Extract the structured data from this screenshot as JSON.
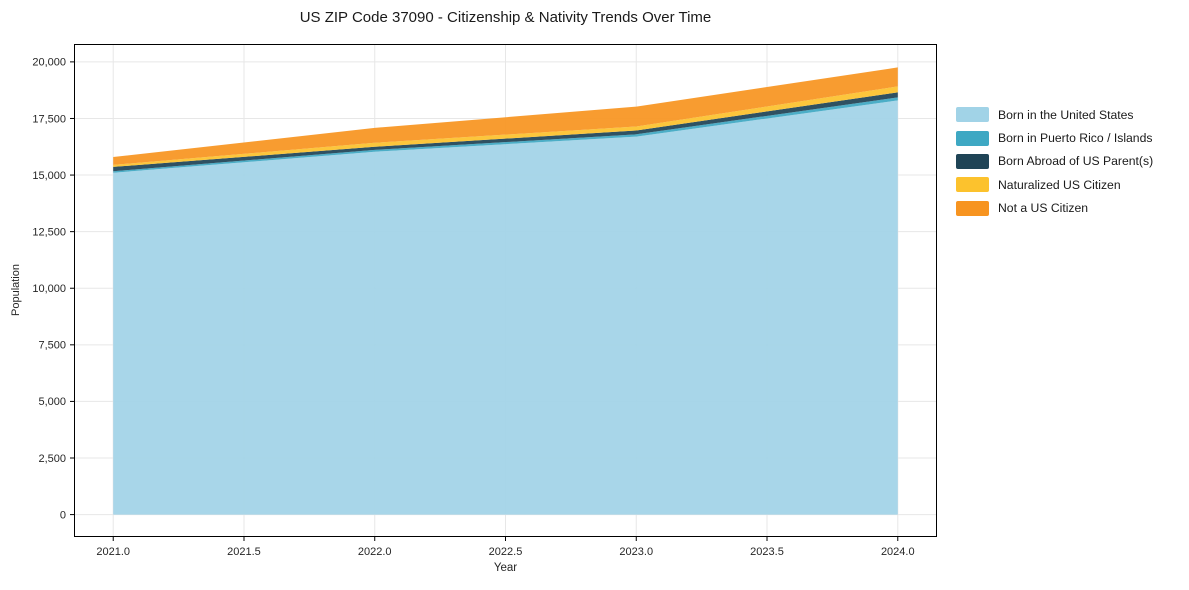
{
  "chart_data": {
    "type": "area",
    "stacked": true,
    "title": "US ZIP Code 37090 - Citizenship & Nativity Trends Over Time",
    "xlabel": "Year",
    "ylabel": "Population",
    "x": [
      2021,
      2022,
      2023,
      2024
    ],
    "series": [
      {
        "name": "Born in the United States",
        "color": "#a1d3e7",
        "values": [
          15100,
          16030,
          16700,
          18300
        ]
      },
      {
        "name": "Born in Puerto Rico / Islands",
        "color": "#3ea8c3",
        "values": [
          70,
          80,
          100,
          130
        ]
      },
      {
        "name": "Born Abroad of US Parent(s)",
        "color": "#1f4456",
        "values": [
          190,
          140,
          170,
          220
        ]
      },
      {
        "name": "Naturalized US Citizen",
        "color": "#fcc22d",
        "values": [
          90,
          175,
          175,
          265
        ]
      },
      {
        "name": "Not a US Citizen",
        "color": "#f79420",
        "values": [
          350,
          660,
          880,
          840
        ]
      }
    ],
    "xlim": [
      2020.85,
      2024.15
    ],
    "ylim": [
      -990,
      20790
    ],
    "xticks": [
      2021.0,
      2021.5,
      2022.0,
      2022.5,
      2023.0,
      2023.5,
      2024.0
    ],
    "yticks": [
      0,
      2500,
      5000,
      7500,
      10000,
      12500,
      15000,
      17500,
      20000
    ],
    "grid": true,
    "grid_color": "#e7e7e7",
    "spine_color": "#000000",
    "legend_position": "center right outside",
    "fill_opacity": 0.93
  }
}
